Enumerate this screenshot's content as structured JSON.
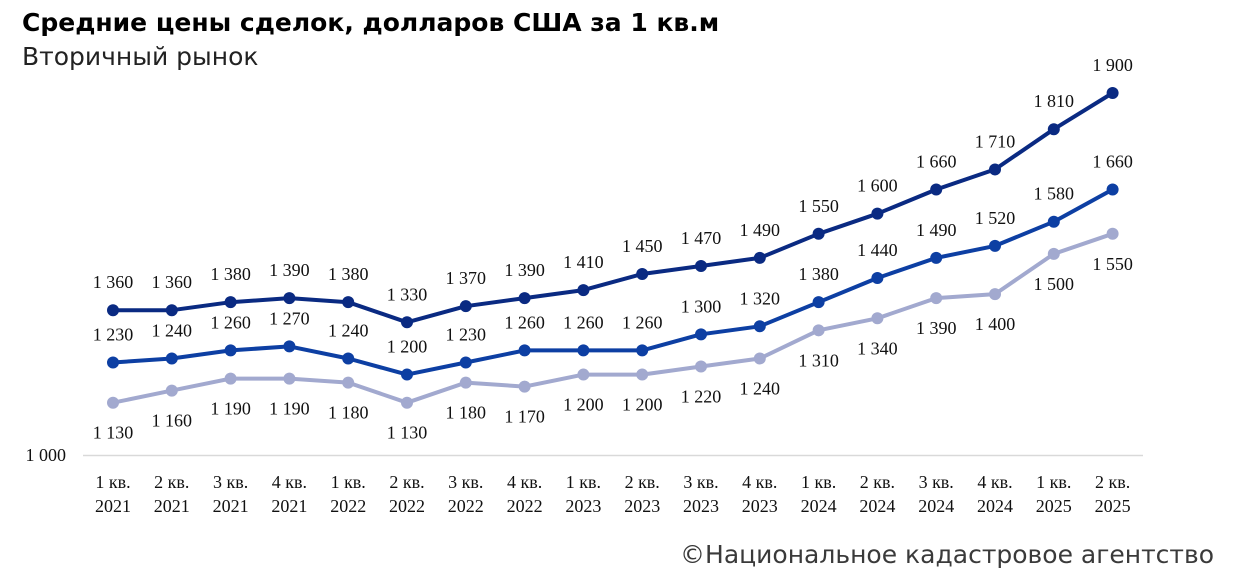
{
  "title": "Средние цены сделок, долларов США за 1 кв.м",
  "subtitle": "Вторичный рынок",
  "source": "©Национальное кадастровое агентство",
  "colors": {
    "series_top": "#0a2a82",
    "series_mid": "#0d3fa3",
    "series_low": "#a2a9cf",
    "axis": "#d9d9d9"
  },
  "chart_data": {
    "type": "line",
    "categories": [
      [
        "1 кв.",
        "2021"
      ],
      [
        "2 кв.",
        "2021"
      ],
      [
        "3 кв.",
        "2021"
      ],
      [
        "4 кв.",
        "2021"
      ],
      [
        "1 кв.",
        "2022"
      ],
      [
        "2 кв.",
        "2022"
      ],
      [
        "3 кв.",
        "2022"
      ],
      [
        "4 кв.",
        "2022"
      ],
      [
        "1 кв.",
        "2023"
      ],
      [
        "2 кв.",
        "2023"
      ],
      [
        "3 кв.",
        "2023"
      ],
      [
        "4 кв.",
        "2023"
      ],
      [
        "1 кв.",
        "2024"
      ],
      [
        "2 кв.",
        "2024"
      ],
      [
        "3 кв.",
        "2024"
      ],
      [
        "4 кв.",
        "2024"
      ],
      [
        "1 кв.",
        "2025"
      ],
      [
        "2 кв.",
        "2025"
      ]
    ],
    "ylim": [
      1000,
      1900
    ],
    "ytick_labels": [
      "1 000"
    ],
    "series": [
      {
        "key": "top",
        "values": [
          1360,
          1360,
          1380,
          1390,
          1380,
          1330,
          1370,
          1390,
          1410,
          1450,
          1470,
          1490,
          1550,
          1600,
          1660,
          1710,
          1810,
          1900
        ],
        "labels": [
          "1 360",
          "1 360",
          "1 380",
          "1 390",
          "1 380",
          "1 330",
          "1 370",
          "1 390",
          "1 410",
          "1 450",
          "1 470",
          "1 490",
          "1 550",
          "1 600",
          "1 660",
          "1 710",
          "1 810",
          "1 900"
        ],
        "label_position": "above",
        "color": "#0a2a82"
      },
      {
        "key": "mid",
        "values": [
          1230,
          1240,
          1260,
          1270,
          1240,
          1200,
          1230,
          1260,
          1260,
          1260,
          1300,
          1320,
          1380,
          1440,
          1490,
          1520,
          1580,
          1660
        ],
        "labels": [
          "1 230",
          "1 240",
          "1 260",
          "1 270",
          "1 240",
          "1 200",
          "1 230",
          "1 260",
          "1 260",
          "1 260",
          "1 300",
          "1 320",
          "1 380",
          "1 440",
          "1 490",
          "1 520",
          "1 580",
          "1 660"
        ],
        "label_position": "above",
        "color": "#0d3fa3"
      },
      {
        "key": "low",
        "values": [
          1130,
          1160,
          1190,
          1190,
          1180,
          1130,
          1180,
          1170,
          1200,
          1200,
          1220,
          1240,
          1310,
          1340,
          1390,
          1400,
          1500,
          1550
        ],
        "labels": [
          "1 130",
          "1 160",
          "1 190",
          "1 190",
          "1 180",
          "1 130",
          "1 180",
          "1 170",
          "1 200",
          "1 200",
          "1 220",
          "1 240",
          "1 310",
          "1 340",
          "1 390",
          "1 400",
          "1 500",
          "1 550"
        ],
        "label_position": "below",
        "color": "#a2a9cf"
      }
    ]
  }
}
